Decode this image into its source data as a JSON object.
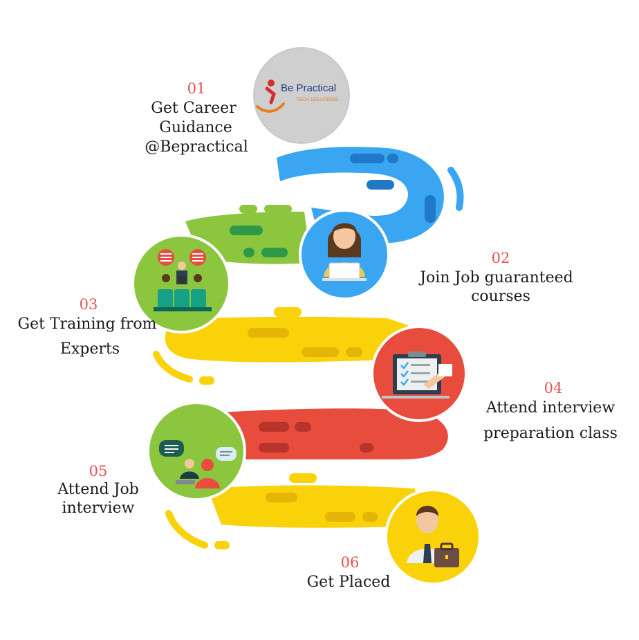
{
  "logo": {
    "name": "Be Practical",
    "tagline": "TECH SOLUTIONS"
  },
  "steps": [
    {
      "number": "01",
      "line1": "Get Career",
      "line2": "Guidance",
      "line3": "@Bepractical",
      "color": "#bdbdbd"
    },
    {
      "number": "02",
      "line1": "Join Job guaranteed",
      "line2": "courses",
      "color": "#3aa6f2"
    },
    {
      "number": "03",
      "line1": "Get Training from",
      "line2": "Experts",
      "color": "#8cc63f"
    },
    {
      "number": "04",
      "line1": "Attend interview",
      "line2": "preparation class",
      "color": "#e84c3d"
    },
    {
      "number": "05",
      "line1": "Attend Job",
      "line2": "interview",
      "color": "#8cc63f"
    },
    {
      "number": "06",
      "line1": "Get Placed",
      "color": "#f9d20a"
    }
  ],
  "icons": {
    "step1": "logo-icon",
    "step2": "woman-laptop-icon",
    "step3": "trainer-audience-icon",
    "step4": "clipboard-checklist-icon",
    "step5": "interview-chat-icon",
    "step6": "businessman-briefcase-icon"
  }
}
